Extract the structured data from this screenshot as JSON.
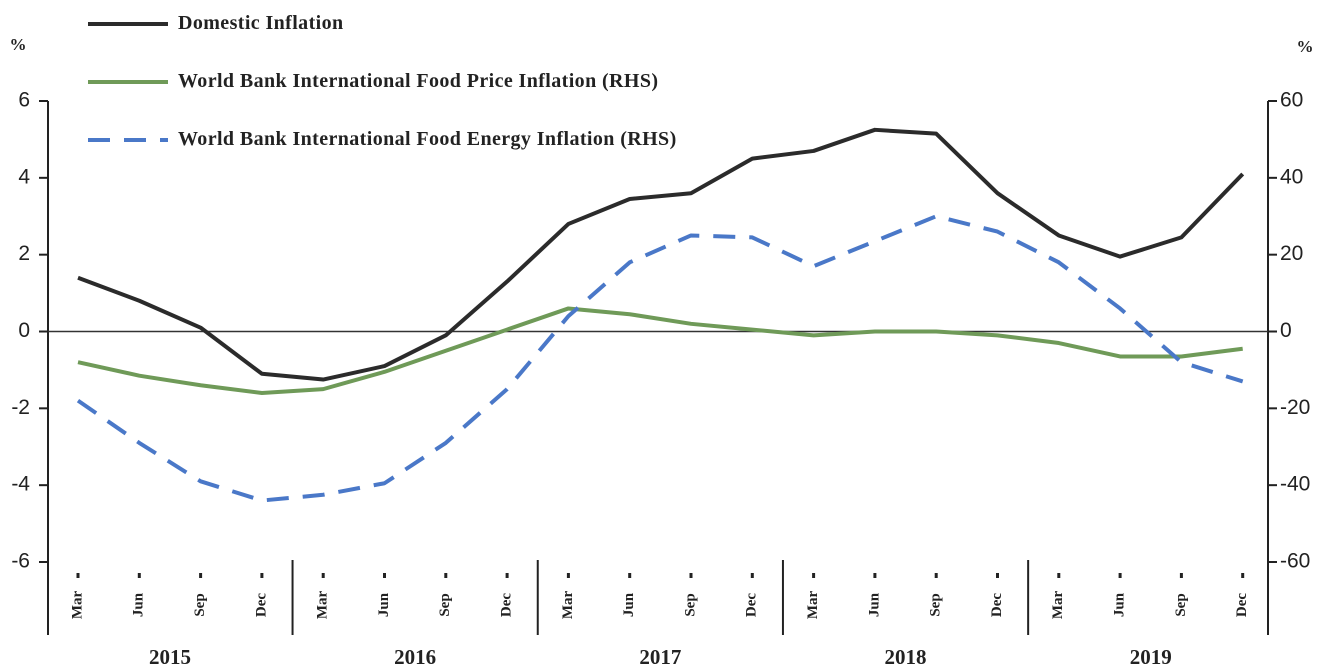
{
  "chart_data": {
    "type": "line",
    "y_unit": "%",
    "y2_unit": "%",
    "categories": [
      "Mar",
      "Jun",
      "Sep",
      "Dec",
      "Mar",
      "Jun",
      "Sep",
      "Dec",
      "Mar",
      "Jun",
      "Sep",
      "Dec",
      "Mar",
      "Jun",
      "Sep",
      "Dec",
      "Mar",
      "Jun",
      "Sep",
      "Dec"
    ],
    "years": [
      "2015",
      "2016",
      "2017",
      "2018",
      "2019"
    ],
    "ylim": [
      -6,
      6
    ],
    "yticks": [
      6,
      4,
      2,
      0,
      -2,
      -4,
      -6
    ],
    "y2lim": [
      -60,
      60
    ],
    "y2ticks": [
      60,
      40,
      20,
      0,
      -20,
      -40,
      -60
    ],
    "series": [
      {
        "name": "Domestic Inflation",
        "color": "#2b2b2b",
        "dash": false,
        "values": [
          1.4,
          0.8,
          0.1,
          -1.1,
          -1.25,
          -0.9,
          -0.1,
          1.3,
          2.8,
          3.45,
          3.6,
          4.5,
          4.7,
          5.25,
          5.15,
          3.6,
          2.5,
          1.95,
          2.45,
          4.1
        ]
      },
      {
        "name": "World Bank International Food Price Inflation (RHS)",
        "color": "#6f9a58",
        "dash": false,
        "axis": "y2",
        "values": [
          -8,
          -11.5,
          -14,
          -16,
          -15,
          -10.5,
          -5,
          0.5,
          6,
          4.5,
          2,
          0.5,
          -1,
          0,
          0,
          -1,
          -3,
          -6.5,
          -6.5,
          -4.5
        ]
      },
      {
        "name": "World Bank International Food Energy Inflation (RHS)",
        "color": "#4a78c8",
        "dash": true,
        "axis": "y2",
        "values": [
          -18,
          -29,
          -39,
          -44,
          -42.5,
          -39.5,
          -29,
          -15,
          4,
          18,
          25,
          24.5,
          17,
          23.5,
          30,
          26,
          18,
          6,
          -8,
          -13
        ]
      }
    ]
  }
}
